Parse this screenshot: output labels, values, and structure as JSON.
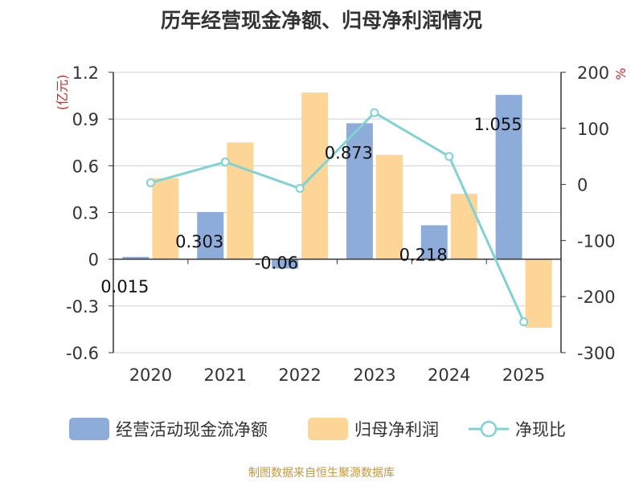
{
  "chart_data": {
    "type": "bar",
    "title": "历年经营现金净额、归母净利润情况",
    "categories": [
      "2020",
      "2021",
      "2022",
      "2023",
      "2024",
      "2025"
    ],
    "series": [
      {
        "name": "经营活动现金流净额",
        "axis": "left",
        "values": [
          0.015,
          0.303,
          -0.06,
          0.873,
          0.218,
          1.055
        ],
        "labels": [
          "0.015",
          "0.303",
          "-0.06",
          "0.873",
          "0.218",
          "1.055"
        ],
        "color": "#8eacd9"
      },
      {
        "name": "归母净利润",
        "axis": "left",
        "values": [
          0.52,
          0.75,
          1.07,
          0.67,
          0.42,
          -0.44
        ],
        "color": "#fdd597"
      },
      {
        "name": "净现比",
        "axis": "right",
        "type": "line",
        "values": [
          3,
          40,
          -7,
          128,
          50,
          -245
        ],
        "color": "#80d3d2"
      }
    ],
    "y_left": {
      "label": "(亿元)",
      "range": [
        -0.6,
        1.2
      ],
      "ticks": [
        "-0.6",
        "-0.3",
        "0",
        "0.3",
        "0.6",
        "0.9",
        "1.2"
      ],
      "tick_values": [
        -0.6,
        -0.3,
        0,
        0.3,
        0.6,
        0.9,
        1.2
      ]
    },
    "y_right": {
      "label": "%",
      "range": [
        -300,
        200
      ],
      "ticks": [
        "-300",
        "-200",
        "-100",
        "0",
        "100",
        "200"
      ],
      "tick_values": [
        -300,
        -200,
        -100,
        0,
        100,
        200
      ]
    },
    "grid": true,
    "legend": "bottom"
  },
  "legend": {
    "bar1": "经营活动现金流净额",
    "bar2": "归母净利润",
    "line": "净现比"
  },
  "source": "制图数据来自恒生聚源数据库"
}
